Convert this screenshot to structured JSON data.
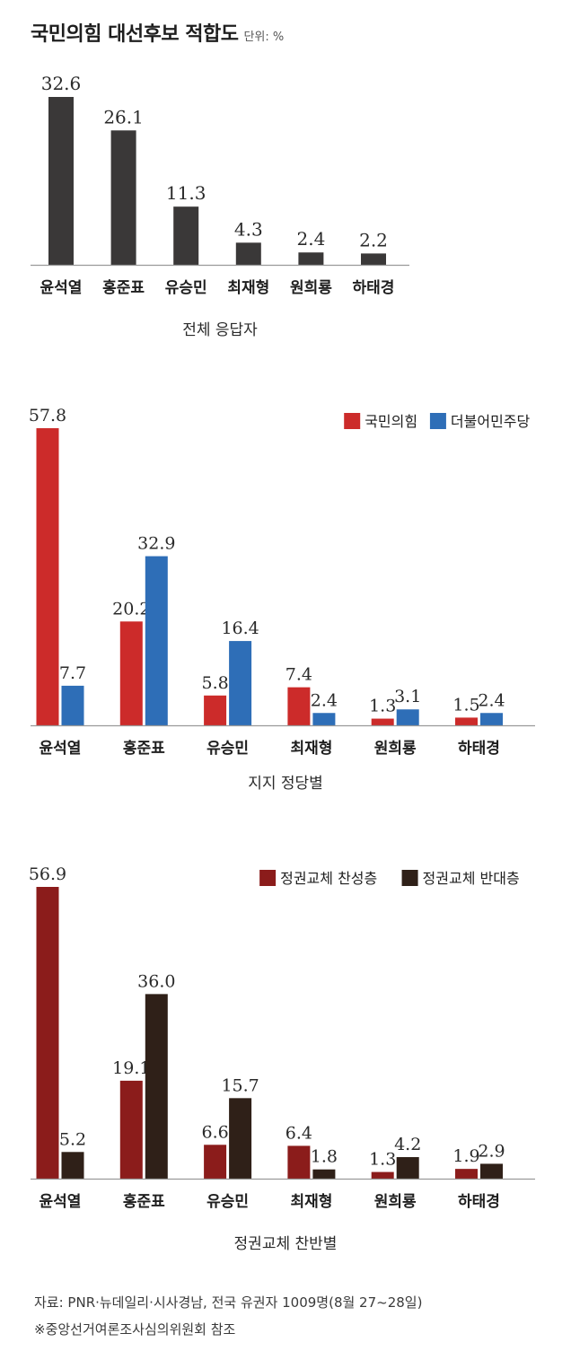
{
  "header": {
    "title": "국민의힘 대선후보 적합도",
    "unit": "단위: %"
  },
  "chart_data": [
    {
      "type": "bar",
      "subtitle": "전체 응답자",
      "categories": [
        "윤석열",
        "홍준표",
        "유승민",
        "최재형",
        "원희룡",
        "하태경"
      ],
      "series": [
        {
          "values": [
            32.6,
            26.1,
            11.3,
            4.3,
            2.4,
            2.2
          ],
          "color": "#3a3838"
        }
      ],
      "ylim": [
        0,
        32.6
      ]
    },
    {
      "type": "bar",
      "subtitle": "지지 정당별",
      "categories": [
        "윤석열",
        "홍준표",
        "유승민",
        "최재형",
        "원희룡",
        "하태경"
      ],
      "series": [
        {
          "name": "국민의힘",
          "values": [
            57.8,
            20.2,
            5.8,
            7.4,
            1.3,
            1.5
          ],
          "color": "#cc2b2a"
        },
        {
          "name": "더불어민주당",
          "values": [
            7.7,
            32.9,
            16.4,
            2.4,
            3.1,
            2.4
          ],
          "color": "#2e6eb7"
        }
      ],
      "legend": "top-right",
      "ylim": [
        0,
        57.8
      ]
    },
    {
      "type": "bar",
      "subtitle": "정권교체 찬반별",
      "categories": [
        "윤석열",
        "홍준표",
        "유승민",
        "최재형",
        "원희룡",
        "하태경"
      ],
      "series": [
        {
          "name": "정권교체 찬성층",
          "values": [
            56.9,
            19.1,
            6.6,
            6.4,
            1.3,
            1.9
          ],
          "color": "#8b1c1b"
        },
        {
          "name": "정권교체 반대층",
          "values": [
            5.2,
            36.0,
            15.7,
            1.8,
            4.2,
            2.9
          ],
          "color": "#2f2018"
        }
      ],
      "legend": "top-right",
      "ylim": [
        0,
        56.9
      ]
    }
  ],
  "footer": {
    "source": "자료: PNR·뉴데일리·시사경남, 전국 유권자 1009명(8월 27~28일)",
    "note": "※중앙선거여론조사심의위원회 참조"
  }
}
